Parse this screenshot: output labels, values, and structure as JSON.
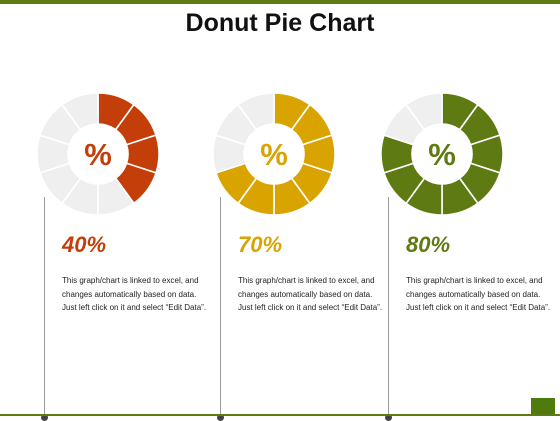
{
  "title": "Donut Pie Chart",
  "chart_data": [
    {
      "type": "pie",
      "value": 40,
      "value_label": "40%",
      "center_label": "%",
      "segments": 10,
      "color": "#c43e0a",
      "track_color": "#efefef"
    },
    {
      "type": "pie",
      "value": 70,
      "value_label": "70%",
      "center_label": "%",
      "segments": 10,
      "color": "#d9a300",
      "track_color": "#efefef"
    },
    {
      "type": "pie",
      "value": 80,
      "value_label": "80%",
      "center_label": "%",
      "segments": 10,
      "color": "#5e7a12",
      "track_color": "#efefef"
    }
  ],
  "description": "This graph/chart is linked to excel, and changes automatically based on data. Just left click on it and select “Edit Data”."
}
